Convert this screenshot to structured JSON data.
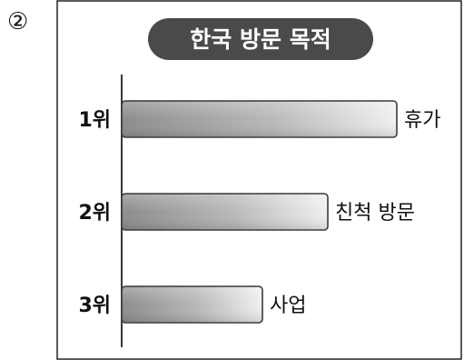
{
  "marker": "②",
  "chart_data": {
    "type": "bar",
    "orientation": "horizontal",
    "title": "한국 방문 목적",
    "ranks": [
      "1위",
      "2위",
      "3위"
    ],
    "categories": [
      "휴가",
      "친척 방문",
      "사업"
    ],
    "values": [
      3,
      2,
      1
    ],
    "value_note": "no value axis; bars show rank order only",
    "xlabel": "",
    "ylabel": "",
    "grid": false,
    "legend": "none",
    "colors": {
      "title_fill": "#4a4a4a",
      "bar_dark": "#8c8c8c",
      "bar_light": "#f0f0f0",
      "bar_stroke": "#3a3a3a",
      "frame": "#222222"
    }
  }
}
